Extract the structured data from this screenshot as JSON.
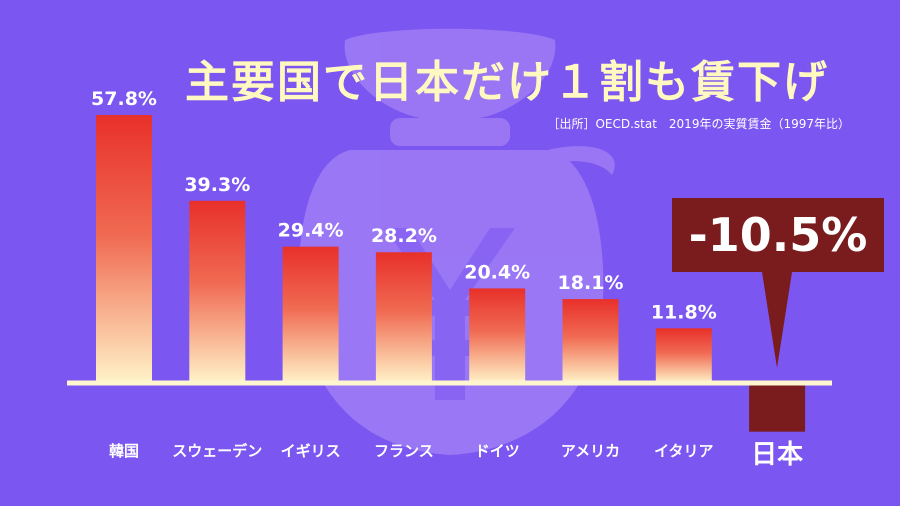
{
  "title": "主要国で日本だけ１割も賃下げ",
  "source": "［出所］OECD.stat　2019年の実質賃金（1997年比）",
  "highlight": {
    "label": "-10.5%"
  },
  "colors": {
    "background": "#7b56f0",
    "bar_top": "#e8302a",
    "bar_bottom": "#fff3c8",
    "negative_bar": "#7a1c1e",
    "title": "#fff8c0",
    "text": "#ffffff"
  },
  "background_icon": "money-bag-yen-icon",
  "chart_data": {
    "type": "bar",
    "title": "主要国で日本だけ１割も賃下げ",
    "categories": [
      "韓国",
      "スウェーデン",
      "イギリス",
      "フランス",
      "ドイツ",
      "アメリカ",
      "イタリア",
      "日本"
    ],
    "values": [
      57.8,
      39.3,
      29.4,
      28.2,
      20.4,
      18.1,
      11.8,
      -10.5
    ],
    "value_labels": [
      "57.8%",
      "39.3%",
      "29.4%",
      "28.2%",
      "20.4%",
      "18.1%",
      "11.8%",
      "-10.5%"
    ],
    "ylim": [
      -12,
      58
    ],
    "grid": false,
    "legend": "none"
  }
}
